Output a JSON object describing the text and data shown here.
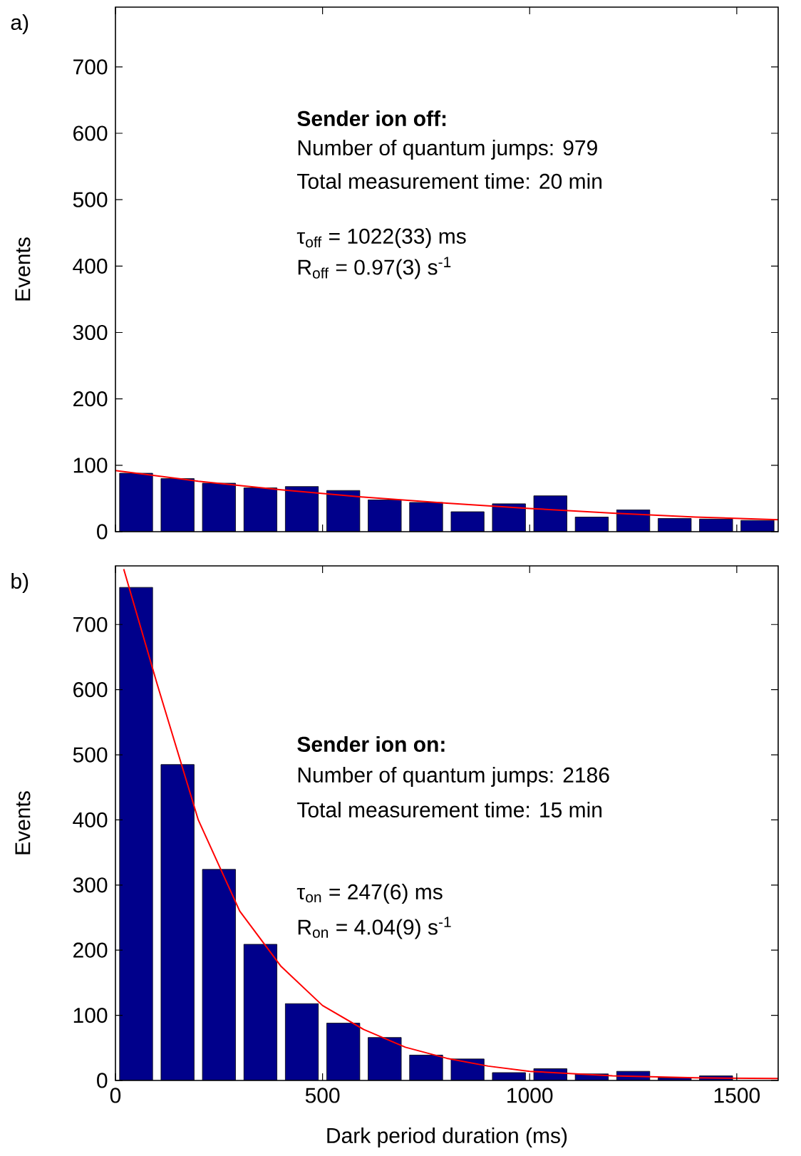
{
  "chart_data": [
    {
      "type": "histogram",
      "title": "a)",
      "ylabel": "Events",
      "xlim": [
        0,
        1600
      ],
      "ylim": [
        0,
        790
      ],
      "xticks": [
        0,
        500,
        1000,
        1500
      ],
      "yticks": [
        0,
        100,
        200,
        300,
        400,
        500,
        600,
        700
      ],
      "tick_labels": "y",
      "grid": false,
      "bins": [
        0,
        100,
        200,
        300,
        400,
        500,
        600,
        700,
        800,
        900,
        1000,
        1100,
        1200,
        1300,
        1400,
        1500,
        1600
      ],
      "series": [
        {
          "color": "#00008b",
          "values": [
            88,
            80,
            73,
            66,
            68,
            62,
            48,
            44,
            30,
            42,
            54,
            22,
            33,
            20,
            19,
            17
          ]
        },
        {
          "type": "line",
          "color": "#ff0000",
          "x": [
            0,
            200,
            400,
            600,
            800,
            1000,
            1200,
            1400,
            1600
          ],
          "values": [
            92,
            76,
            63,
            52,
            43,
            35,
            28,
            22,
            18
          ]
        }
      ],
      "annotations": [
        "Sender ion off:",
        "Number of quantum jumps: 979",
        "Total measurement time: 20 min",
        "τ$_{off}$ = 1022(33) ms",
        "R$_{off}$ = 0.97(3) s$^{-1}$"
      ]
    },
    {
      "type": "histogram",
      "title": "b)",
      "xlabel": "Dark period duration (ms)",
      "ylabel": "Events",
      "xlim": [
        0,
        1600
      ],
      "ylim": [
        0,
        790
      ],
      "xticks": [
        0,
        500,
        1000,
        1500
      ],
      "yticks": [
        0,
        100,
        200,
        300,
        400,
        500,
        600,
        700
      ],
      "grid": false,
      "bins": [
        0,
        100,
        200,
        300,
        400,
        500,
        600,
        700,
        800,
        900,
        1000,
        1100,
        1200,
        1300,
        1400,
        1500,
        1600
      ],
      "series": [
        {
          "color": "#00008b",
          "values": [
            757,
            485,
            324,
            209,
            118,
            88,
            66,
            39,
            33,
            12,
            18,
            10,
            14,
            4,
            7,
            null
          ]
        },
        {
          "type": "line",
          "color": "#ff0000",
          "x": [
            20,
            100,
            200,
            300,
            400,
            500,
            600,
            700,
            800,
            900,
            1000,
            1200,
            1400,
            1600
          ],
          "values": [
            785,
            610,
            400,
            260,
            175,
            115,
            78,
            51,
            34,
            22,
            14,
            7,
            4,
            3
          ]
        }
      ],
      "annotations": [
        "Sender ion on:",
        "Number of quantum jumps: 2186",
        "Total measurement time: 15 min",
        "τ$_{on}$ = 247(6) ms",
        "R$_{on}$ = 4.04(9) s$^{-1}$"
      ]
    }
  ]
}
